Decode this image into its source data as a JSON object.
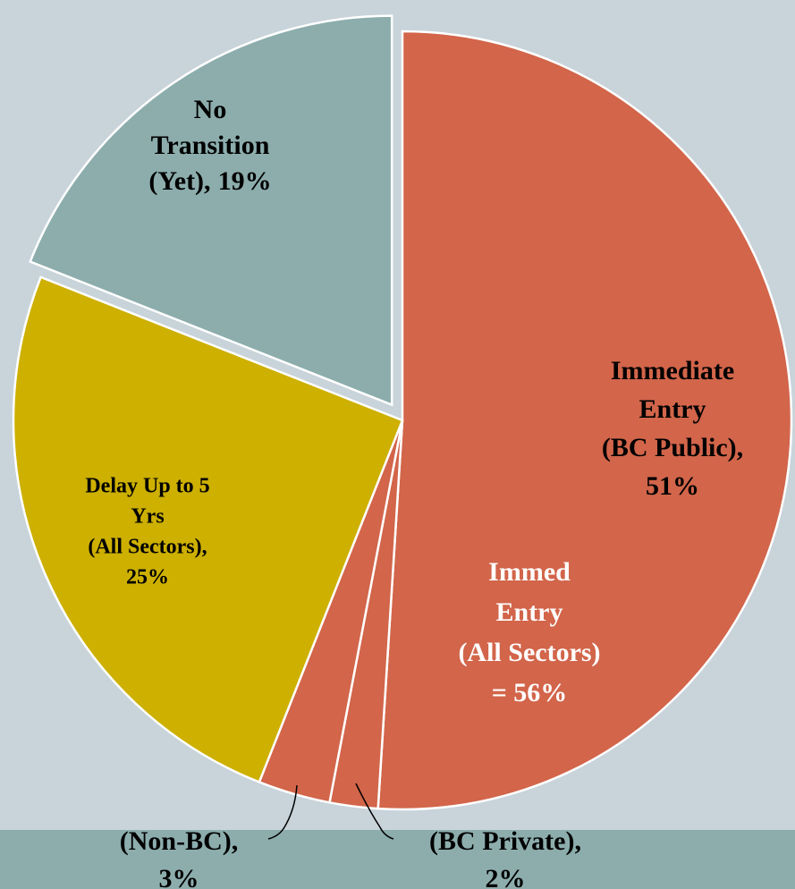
{
  "chart_data": {
    "type": "pie",
    "categories": [
      [
        "Immediate",
        "Entry",
        "(BC Public),"
      ],
      [
        "(BC Private),"
      ],
      [
        "(Non-BC),"
      ],
      [
        "Delay Up to 5",
        "Yrs",
        "(All Sectors),"
      ],
      [
        "No",
        "Transition",
        "(Yet),"
      ]
    ],
    "values": [
      51,
      2,
      3,
      25,
      19
    ],
    "value_labels": [
      "51%",
      "2%",
      "3%",
      "25%",
      "19%"
    ],
    "colors": [
      "#d2654a",
      "#d2654a",
      "#d2654a",
      "#cdb000",
      "#8dadad"
    ],
    "exploded": [
      false,
      false,
      false,
      false,
      true
    ],
    "annotation": [
      "Immed",
      "Entry",
      "(All Sectors)",
      "= 56%"
    ]
  }
}
